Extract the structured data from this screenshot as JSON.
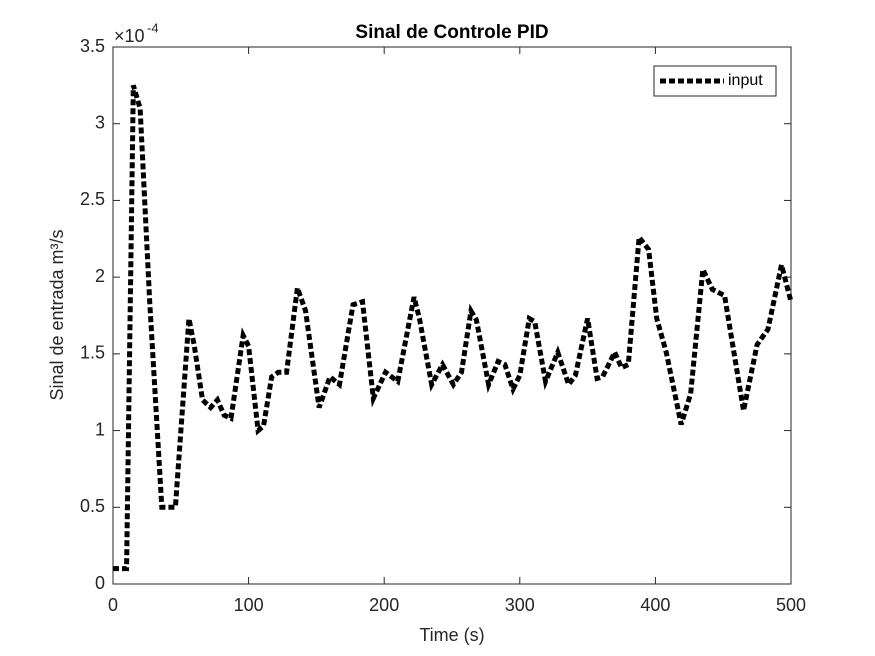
{
  "chart_data": {
    "type": "line",
    "title": "Sinal de Controle PID",
    "xlabel": "Time (s)",
    "ylabel": "Sinal de entrada m³/s",
    "y_multiplier": "×10",
    "y_multiplier_exponent": "-4",
    "x": [
      0,
      10,
      15,
      20,
      27,
      36,
      46,
      56,
      60,
      66,
      72,
      77,
      82,
      87,
      96,
      100,
      107,
      111,
      117,
      122,
      128,
      136,
      142,
      152,
      160,
      167,
      177,
      184,
      192,
      201,
      210,
      222,
      226,
      235,
      243,
      251,
      257,
      264,
      268,
      277,
      284,
      289,
      295,
      300,
      307,
      311,
      319,
      328,
      336,
      341,
      350,
      357,
      361,
      370,
      375,
      380,
      388,
      395,
      401,
      408,
      419,
      426,
      435,
      442,
      451,
      465,
      475,
      483,
      493,
      500
    ],
    "series": [
      {
        "name": "input",
        "color": "#000000",
        "values": [
          0.1,
          0.1,
          3.25,
          3.1,
          1.85,
          0.5,
          0.5,
          1.73,
          1.55,
          1.2,
          1.15,
          1.2,
          1.1,
          1.08,
          1.62,
          1.55,
          1.0,
          1.03,
          1.35,
          1.38,
          1.38,
          1.93,
          1.78,
          1.15,
          1.35,
          1.3,
          1.82,
          1.84,
          1.21,
          1.38,
          1.32,
          1.87,
          1.73,
          1.3,
          1.43,
          1.3,
          1.38,
          1.78,
          1.72,
          1.3,
          1.45,
          1.43,
          1.27,
          1.36,
          1.73,
          1.71,
          1.32,
          1.51,
          1.3,
          1.36,
          1.73,
          1.34,
          1.35,
          1.51,
          1.41,
          1.43,
          2.26,
          2.18,
          1.73,
          1.51,
          1.04,
          1.24,
          2.05,
          1.92,
          1.88,
          1.13,
          1.56,
          1.66,
          2.08,
          1.84
        ]
      }
    ],
    "xlim": [
      0,
      500
    ],
    "xticks": [
      0,
      100,
      200,
      300,
      400,
      500
    ],
    "ylim": [
      0,
      3.5
    ],
    "yticks": [
      0,
      0.5,
      1,
      1.5,
      2,
      2.5,
      3,
      3.5
    ],
    "grid": false,
    "legend": "northeast",
    "line_style": "dotted"
  }
}
